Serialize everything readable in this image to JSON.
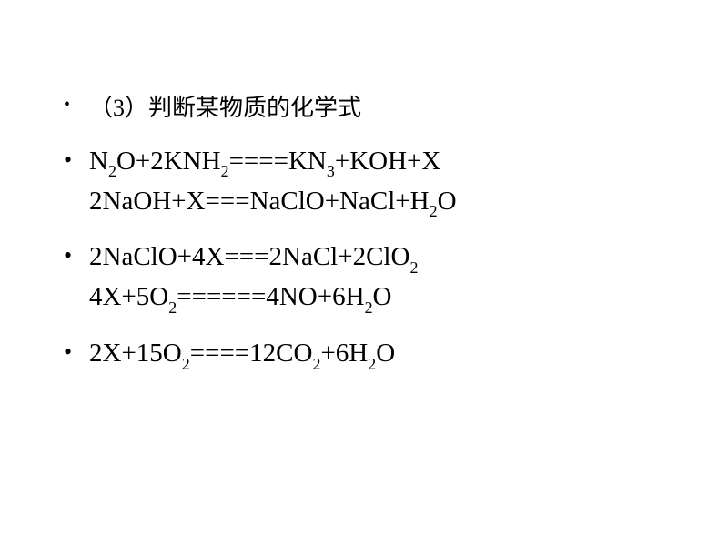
{
  "slide": {
    "background_color": "#ffffff",
    "text_color": "#000000",
    "bullet_glyph": "•",
    "title_fontsize": 26,
    "body_fontsize": 29,
    "sub_scale": 0.62,
    "items": [
      {
        "type": "heading",
        "text": "（3）判断某物质的化学式"
      },
      {
        "type": "equation_pair",
        "lines": [
          [
            {
              "t": "N"
            },
            {
              "t": "2",
              "sub": true
            },
            {
              "t": "O+2KNH"
            },
            {
              "t": "2",
              "sub": true
            },
            {
              "t": "====KN"
            },
            {
              "t": "3",
              "sub": true
            },
            {
              "t": "+KOH+X"
            }
          ],
          [
            {
              "t": "2NaOH+X===NaClO+NaCl+H"
            },
            {
              "t": "2",
              "sub": true
            },
            {
              "t": "O"
            }
          ]
        ]
      },
      {
        "type": "equation_pair",
        "lines": [
          [
            {
              "t": "2NaClO+4X===2NaCl+2ClO"
            },
            {
              "t": "2",
              "sub": true
            }
          ],
          [
            {
              "t": "4X+5O"
            },
            {
              "t": "2",
              "sub": true
            },
            {
              "t": "======4NO+6H"
            },
            {
              "t": "2",
              "sub": true
            },
            {
              "t": "O"
            }
          ]
        ]
      },
      {
        "type": "equation_single",
        "lines": [
          [
            {
              "t": "2X+15O"
            },
            {
              "t": "2",
              "sub": true
            },
            {
              "t": "====12CO"
            },
            {
              "t": "2",
              "sub": true
            },
            {
              "t": "+6H"
            },
            {
              "t": "2",
              "sub": true
            },
            {
              "t": "O"
            }
          ]
        ]
      }
    ]
  }
}
